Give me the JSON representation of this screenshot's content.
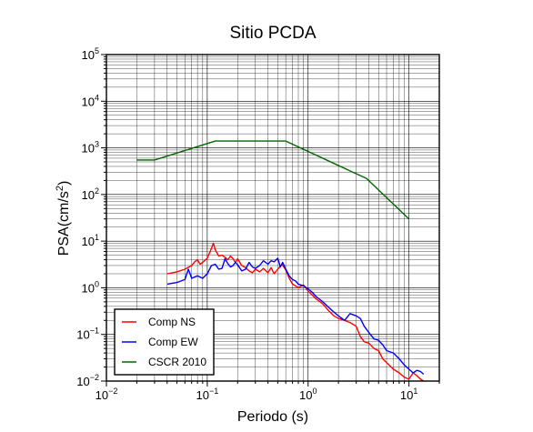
{
  "chart_data": {
    "type": "line",
    "title": "Sitio PCDA",
    "xlabel": "Periodo (s)",
    "ylabel": {
      "base": "PSA(cm/s",
      "sup": "2",
      "end": ")"
    },
    "xscale": "log",
    "yscale": "log",
    "xlim": [
      0.01,
      20
    ],
    "ylim": [
      0.01,
      100000
    ],
    "grid": true,
    "legend_position": "bottom-left",
    "x_ticks": [
      {
        "base": "10",
        "exp": "−2",
        "value": 0.01
      },
      {
        "base": "10",
        "exp": "−1",
        "value": 0.1
      },
      {
        "base": "10",
        "exp": "0",
        "value": 1
      },
      {
        "base": "10",
        "exp": "1",
        "value": 10
      }
    ],
    "y_ticks": [
      {
        "base": "10",
        "exp": "−2",
        "value": 0.01
      },
      {
        "base": "10",
        "exp": "−1",
        "value": 0.1
      },
      {
        "base": "10",
        "exp": "0",
        "value": 1
      },
      {
        "base": "10",
        "exp": "1",
        "value": 10
      },
      {
        "base": "10",
        "exp": "2",
        "value": 100
      },
      {
        "base": "10",
        "exp": "3",
        "value": 1000
      },
      {
        "base": "10",
        "exp": "4",
        "value": 10000
      },
      {
        "base": "10",
        "exp": "5",
        "value": 100000
      }
    ],
    "series": [
      {
        "name": "Comp NS",
        "color": "#ff0000",
        "x": [
          0.04,
          0.05,
          0.06,
          0.07,
          0.075,
          0.08,
          0.085,
          0.09,
          0.1,
          0.11,
          0.115,
          0.12,
          0.13,
          0.14,
          0.15,
          0.16,
          0.17,
          0.18,
          0.19,
          0.2,
          0.22,
          0.24,
          0.26,
          0.28,
          0.3,
          0.33,
          0.36,
          0.4,
          0.43,
          0.46,
          0.5,
          0.55,
          0.6,
          0.65,
          0.7,
          0.75,
          0.8,
          0.9,
          1.0,
          1.1,
          1.2,
          1.4,
          1.6,
          1.8,
          2.0,
          2.3,
          2.6,
          3.0,
          3.3,
          3.6,
          4.0,
          4.5,
          5.0,
          5.5,
          6.0,
          7.0,
          8.0,
          9.0,
          10.0,
          11.0,
          12.0,
          13.0,
          14.0
        ],
        "values": [
          2.0,
          2.2,
          2.5,
          3.0,
          3.6,
          4.0,
          3.2,
          3.5,
          4.3,
          7.0,
          9.0,
          6.5,
          4.8,
          5.0,
          4.5,
          4.0,
          4.8,
          4.2,
          3.5,
          4.2,
          3.0,
          2.7,
          2.3,
          2.1,
          2.5,
          2.2,
          2.6,
          2.1,
          2.7,
          2.0,
          2.5,
          3.2,
          2.4,
          1.6,
          1.2,
          1.1,
          1.0,
          1.15,
          0.85,
          0.7,
          0.58,
          0.45,
          0.32,
          0.25,
          0.22,
          0.2,
          0.18,
          0.15,
          0.09,
          0.07,
          0.065,
          0.05,
          0.045,
          0.03,
          0.025,
          0.018,
          0.015,
          0.012,
          0.011,
          0.015,
          0.013,
          0.011,
          0.01
        ]
      },
      {
        "name": "Comp EW",
        "color": "#0000ff",
        "x": [
          0.04,
          0.05,
          0.06,
          0.065,
          0.07,
          0.08,
          0.09,
          0.1,
          0.11,
          0.12,
          0.13,
          0.14,
          0.15,
          0.16,
          0.17,
          0.18,
          0.19,
          0.2,
          0.22,
          0.24,
          0.26,
          0.28,
          0.3,
          0.33,
          0.36,
          0.4,
          0.43,
          0.46,
          0.5,
          0.53,
          0.56,
          0.6,
          0.65,
          0.7,
          0.75,
          0.8,
          0.9,
          1.0,
          1.1,
          1.2,
          1.4,
          1.6,
          1.8,
          2.0,
          2.3,
          2.6,
          3.0,
          3.3,
          3.6,
          4.0,
          4.5,
          5.0,
          5.5,
          6.0,
          7.0,
          8.0,
          9.0,
          10.0,
          11.0,
          12.0,
          13.0,
          14.0
        ],
        "values": [
          1.2,
          1.3,
          1.5,
          2.5,
          1.6,
          1.8,
          1.6,
          2.0,
          3.0,
          3.2,
          2.5,
          2.6,
          4.2,
          3.3,
          2.8,
          3.0,
          3.5,
          3.1,
          2.3,
          2.5,
          3.5,
          2.8,
          2.6,
          3.0,
          3.8,
          3.2,
          3.8,
          3.6,
          4.3,
          2.8,
          3.5,
          2.5,
          1.8,
          1.5,
          1.4,
          1.2,
          1.1,
          0.95,
          0.8,
          0.65,
          0.5,
          0.38,
          0.3,
          0.25,
          0.2,
          0.28,
          0.25,
          0.22,
          0.15,
          0.11,
          0.08,
          0.075,
          0.06,
          0.045,
          0.04,
          0.03,
          0.022,
          0.018,
          0.015,
          0.017,
          0.016,
          0.014
        ]
      },
      {
        "name": "CSCR 2010",
        "color": "#006600",
        "x": [
          0.02,
          0.03,
          0.12,
          0.6,
          3.8,
          10.0
        ],
        "values": [
          550,
          550,
          1400,
          1400,
          220,
          30
        ]
      }
    ]
  }
}
